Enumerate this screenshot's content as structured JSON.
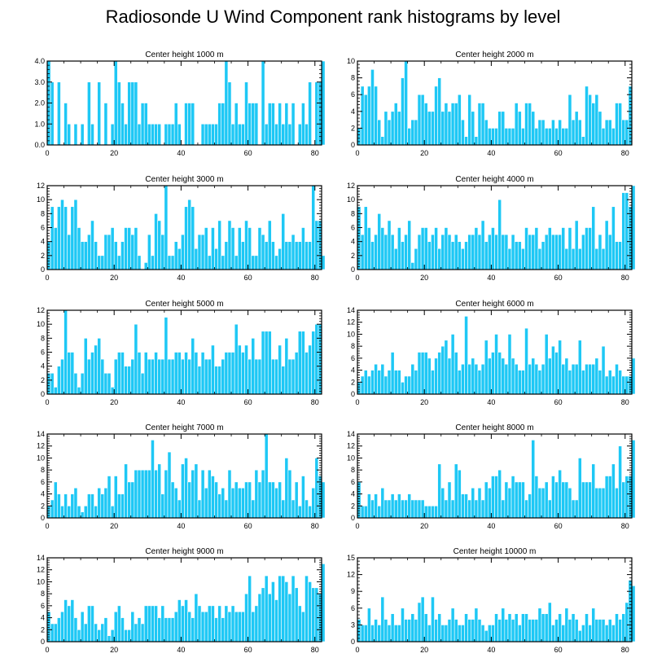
{
  "title": "Radiosonde U Wind Component rank histograms by level",
  "colors": {
    "bar": "#1ec8f5",
    "bar_edge": "#ffffff",
    "axis": "#000000"
  },
  "chart_data": [
    {
      "type": "bar",
      "title": "Center height 1000 m",
      "xlabel": "",
      "ylabel": "",
      "xlim": [
        0,
        82
      ],
      "ylim": [
        0,
        4
      ],
      "xticks": [
        "0",
        "20",
        "40",
        "60",
        "80"
      ],
      "yticks": [
        "0.0",
        "1.0",
        "2.0",
        "3.0",
        "4.0"
      ],
      "values": [
        4,
        3,
        0,
        3,
        0,
        2,
        1,
        0,
        1,
        0,
        1,
        0,
        3,
        1,
        0,
        3,
        0,
        2,
        0,
        1,
        4,
        3,
        2,
        1,
        3,
        3,
        3,
        1,
        2,
        2,
        1,
        1,
        1,
        1,
        0,
        1,
        1,
        1,
        2,
        1,
        0,
        2,
        2,
        2,
        0,
        0,
        1,
        1,
        1,
        1,
        1,
        2,
        2,
        4,
        3,
        1,
        2,
        1,
        1,
        3,
        2,
        2,
        2,
        0,
        4,
        1,
        2,
        2,
        1,
        2,
        1,
        2,
        1,
        2,
        0,
        1,
        2,
        1,
        3,
        0,
        3,
        3,
        4
      ]
    },
    {
      "type": "bar",
      "title": "Center height 2000 m",
      "xlabel": "",
      "ylabel": "",
      "xlim": [
        0,
        82
      ],
      "ylim": [
        0,
        10
      ],
      "xticks": [
        "0",
        "20",
        "40",
        "60",
        "80"
      ],
      "yticks": [
        "0",
        "2",
        "4",
        "6",
        "8",
        "10"
      ],
      "values": [
        2,
        7,
        6,
        7,
        9,
        7,
        3,
        1,
        4,
        3,
        4,
        5,
        4,
        8,
        10,
        2,
        3,
        3,
        6,
        6,
        5,
        4,
        4,
        7,
        8,
        4,
        5,
        4,
        5,
        5,
        6,
        3,
        1,
        6,
        4,
        1,
        5,
        5,
        3,
        2,
        2,
        2,
        4,
        4,
        2,
        2,
        2,
        5,
        4,
        2,
        5,
        5,
        4,
        2,
        3,
        3,
        2,
        2,
        3,
        2,
        3,
        2,
        2,
        6,
        3,
        4,
        3,
        1,
        7,
        6,
        5,
        6,
        4,
        2,
        3,
        3,
        2,
        5,
        5,
        3,
        3,
        7
      ]
    },
    {
      "type": "bar",
      "title": "Center height 3000 m",
      "xlabel": "",
      "ylabel": "",
      "xlim": [
        0,
        82
      ],
      "ylim": [
        0,
        12
      ],
      "xticks": [
        "0",
        "20",
        "40",
        "60",
        "80"
      ],
      "yticks": [
        "0",
        "2",
        "4",
        "6",
        "8",
        "10",
        "12"
      ],
      "values": [
        4,
        9,
        6,
        9,
        10,
        9,
        5,
        9,
        10,
        6,
        4,
        4,
        5,
        7,
        4,
        2,
        2,
        5,
        5,
        6,
        4,
        2,
        4,
        6,
        6,
        5,
        6,
        2,
        0,
        1,
        5,
        2,
        8,
        7,
        5,
        12,
        2,
        2,
        4,
        3,
        5,
        9,
        10,
        9,
        3,
        5,
        5,
        6,
        2,
        6,
        3,
        7,
        2,
        4,
        7,
        6,
        2,
        6,
        4,
        7,
        6,
        2,
        2,
        6,
        5,
        4,
        7,
        4,
        2,
        3,
        8,
        4,
        4,
        5,
        4,
        4,
        6,
        4,
        4,
        12,
        7,
        7,
        2
      ]
    },
    {
      "type": "bar",
      "title": "Center height 4000 m",
      "xlabel": "",
      "ylabel": "",
      "xlim": [
        0,
        82
      ],
      "ylim": [
        0,
        12
      ],
      "xticks": [
        "0",
        "20",
        "40",
        "60",
        "80"
      ],
      "yticks": [
        "0",
        "2",
        "4",
        "6",
        "8",
        "10",
        "12"
      ],
      "values": [
        9,
        5,
        9,
        6,
        4,
        5,
        8,
        6,
        5,
        7,
        5,
        3,
        6,
        4,
        5,
        7,
        1,
        3,
        5,
        6,
        6,
        4,
        5,
        6,
        3,
        5,
        6,
        5,
        4,
        5,
        4,
        3,
        4,
        5,
        5,
        6,
        5,
        7,
        4,
        5,
        6,
        5,
        10,
        5,
        5,
        3,
        5,
        4,
        4,
        3,
        6,
        5,
        5,
        6,
        3,
        4,
        5,
        6,
        5,
        5,
        5,
        6,
        3,
        6,
        3,
        7,
        3,
        5,
        6,
        6,
        9,
        3,
        5,
        3,
        7,
        5,
        9,
        4,
        4,
        11,
        11,
        9,
        12
      ]
    },
    {
      "type": "bar",
      "title": "Center height 5000 m",
      "xlabel": "",
      "ylabel": "",
      "xlim": [
        0,
        82
      ],
      "ylim": [
        0,
        12
      ],
      "xticks": [
        "0",
        "20",
        "40",
        "60",
        "80"
      ],
      "yticks": [
        "0",
        "2",
        "4",
        "6",
        "8",
        "10",
        "12"
      ],
      "values": [
        3,
        3,
        1,
        4,
        5,
        12,
        6,
        6,
        3,
        1,
        3,
        8,
        5,
        6,
        7,
        8,
        5,
        3,
        3,
        1,
        5,
        6,
        6,
        4,
        4,
        5,
        10,
        6,
        3,
        6,
        5,
        5,
        6,
        5,
        5,
        11,
        5,
        5,
        6,
        6,
        5,
        6,
        5,
        8,
        6,
        4,
        6,
        5,
        5,
        7,
        4,
        4,
        5,
        6,
        6,
        6,
        10,
        7,
        6,
        7,
        5,
        8,
        5,
        5,
        9,
        9,
        9,
        5,
        5,
        7,
        4,
        8,
        5,
        5,
        6,
        9,
        9,
        6,
        7,
        9,
        10,
        10
      ]
    },
    {
      "type": "bar",
      "title": "Center height 6000 m",
      "xlabel": "",
      "ylabel": "",
      "xlim": [
        0,
        82
      ],
      "ylim": [
        0,
        14
      ],
      "xticks": [
        "0",
        "20",
        "40",
        "60",
        "80"
      ],
      "yticks": [
        "0",
        "2",
        "4",
        "6",
        "8",
        "10",
        "12",
        "14"
      ],
      "values": [
        2,
        3,
        4,
        3,
        4,
        5,
        4,
        5,
        3,
        4,
        7,
        4,
        4,
        2,
        3,
        3,
        5,
        4,
        7,
        7,
        7,
        6,
        4,
        6,
        7,
        8,
        9,
        6,
        10,
        7,
        4,
        5,
        13,
        5,
        6,
        5,
        4,
        5,
        9,
        6,
        7,
        10,
        7,
        6,
        5,
        10,
        6,
        5,
        4,
        4,
        11,
        5,
        6,
        5,
        4,
        5,
        10,
        6,
        8,
        7,
        9,
        5,
        6,
        4,
        5,
        5,
        9,
        4,
        5,
        5,
        5,
        6,
        4,
        8,
        3,
        4,
        3,
        5,
        4,
        3,
        3,
        3,
        6
      ]
    },
    {
      "type": "bar",
      "title": "Center height 7000 m",
      "xlabel": "",
      "ylabel": "",
      "xlim": [
        0,
        82
      ],
      "ylim": [
        0,
        14
      ],
      "xticks": [
        "0",
        "20",
        "40",
        "60",
        "80"
      ],
      "yticks": [
        "0",
        "2",
        "4",
        "6",
        "8",
        "10",
        "12",
        "14"
      ],
      "values": [
        2,
        3,
        6,
        4,
        2,
        4,
        2,
        4,
        5,
        2,
        1,
        2,
        4,
        4,
        2,
        5,
        4,
        5,
        7,
        2,
        7,
        4,
        4,
        9,
        6,
        6,
        8,
        8,
        8,
        8,
        8,
        13,
        8,
        9,
        4,
        8,
        11,
        6,
        5,
        3,
        9,
        10,
        6,
        8,
        9,
        3,
        8,
        5,
        8,
        7,
        6,
        4,
        5,
        3,
        8,
        5,
        6,
        5,
        5,
        6,
        6,
        3,
        8,
        6,
        8,
        14,
        6,
        6,
        5,
        6,
        3,
        10,
        8,
        3,
        6,
        2,
        7,
        3,
        2,
        5,
        10,
        7,
        6
      ]
    },
    {
      "type": "bar",
      "title": "Center height 8000 m",
      "xlabel": "",
      "ylabel": "",
      "xlim": [
        0,
        82
      ],
      "ylim": [
        0,
        14
      ],
      "xticks": [
        "0",
        "20",
        "40",
        "60",
        "80"
      ],
      "yticks": [
        "0",
        "2",
        "4",
        "6",
        "8",
        "10",
        "12",
        "14"
      ],
      "values": [
        6,
        2,
        2,
        4,
        3,
        4,
        2,
        5,
        3,
        3,
        4,
        3,
        4,
        3,
        3,
        4,
        3,
        3,
        3,
        3,
        2,
        2,
        2,
        2,
        9,
        5,
        3,
        6,
        3,
        9,
        8,
        4,
        4,
        3,
        5,
        3,
        5,
        3,
        6,
        5,
        7,
        7,
        8,
        3,
        6,
        5,
        7,
        6,
        6,
        6,
        3,
        4,
        13,
        7,
        5,
        5,
        6,
        3,
        7,
        6,
        8,
        6,
        6,
        5,
        3,
        3,
        10,
        6,
        6,
        6,
        9,
        5,
        5,
        5,
        7,
        7,
        9,
        5,
        12,
        6,
        7,
        7,
        13
      ]
    },
    {
      "type": "bar",
      "title": "Center height 9000 m",
      "xlabel": "",
      "ylabel": "",
      "xlim": [
        0,
        82
      ],
      "ylim": [
        0,
        14
      ],
      "xticks": [
        "0",
        "20",
        "40",
        "60",
        "80"
      ],
      "yticks": [
        "0",
        "2",
        "4",
        "6",
        "8",
        "10",
        "12",
        "14"
      ],
      "values": [
        5,
        3,
        3,
        4,
        5,
        7,
        6,
        7,
        4,
        2,
        5,
        3,
        6,
        6,
        3,
        2,
        3,
        4,
        1,
        2,
        5,
        6,
        4,
        2,
        2,
        5,
        3,
        4,
        3,
        6,
        6,
        6,
        6,
        4,
        6,
        4,
        4,
        4,
        5,
        7,
        6,
        7,
        5,
        4,
        8,
        6,
        5,
        5,
        6,
        6,
        4,
        6,
        4,
        6,
        5,
        6,
        5,
        5,
        5,
        8,
        11,
        5,
        6,
        8,
        9,
        11,
        8,
        10,
        7,
        11,
        11,
        10,
        8,
        11,
        9,
        6,
        5,
        11,
        10,
        9,
        9,
        8,
        13
      ]
    },
    {
      "type": "bar",
      "title": "Center height 10000 m",
      "xlabel": "",
      "ylabel": "",
      "xlim": [
        0,
        82
      ],
      "ylim": [
        0,
        15
      ],
      "xticks": [
        "0",
        "20",
        "40",
        "60",
        "80"
      ],
      "yticks": [
        "0",
        "3",
        "6",
        "9",
        "12",
        "15"
      ],
      "values": [
        4,
        3,
        3,
        6,
        3,
        4,
        3,
        8,
        4,
        3,
        5,
        3,
        3,
        6,
        4,
        4,
        5,
        4,
        7,
        8,
        5,
        3,
        8,
        4,
        5,
        3,
        3,
        4,
        6,
        4,
        3,
        3,
        5,
        4,
        4,
        6,
        4,
        3,
        2,
        3,
        3,
        5,
        4,
        6,
        4,
        5,
        4,
        5,
        3,
        5,
        5,
        4,
        4,
        4,
        6,
        5,
        5,
        7,
        3,
        4,
        5,
        3,
        6,
        4,
        5,
        4,
        2,
        3,
        5,
        3,
        6,
        4,
        4,
        4,
        3,
        4,
        3,
        5,
        4,
        5,
        7,
        11,
        10
      ]
    }
  ]
}
